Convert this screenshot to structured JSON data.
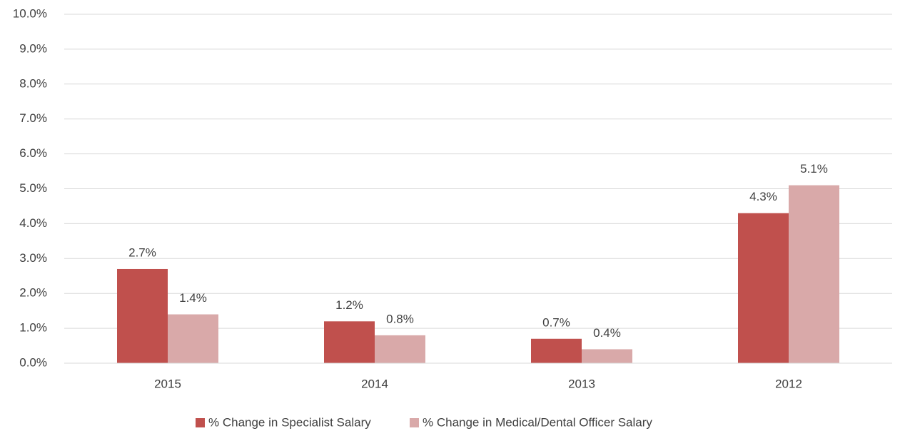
{
  "chart_data": {
    "type": "bar",
    "categories": [
      "2015",
      "2014",
      "2013",
      "2012"
    ],
    "series": [
      {
        "name": "% Change in Specialist Salary",
        "color": "#c0504d",
        "values": [
          2.7,
          1.2,
          0.7,
          4.3
        ],
        "value_labels": [
          "2.7%",
          "1.2%",
          "0.7%",
          "4.3%"
        ]
      },
      {
        "name": "% Change in Medical/Dental Officer Salary",
        "color": "#d9a9a9",
        "values": [
          1.4,
          0.8,
          0.4,
          5.1
        ],
        "value_labels": [
          "1.4%",
          "0.8%",
          "0.4%",
          "5.1%"
        ]
      }
    ],
    "ylim": [
      0,
      10
    ],
    "yticks": [
      {
        "value": 0,
        "label": "0.0%"
      },
      {
        "value": 1,
        "label": "1.0%"
      },
      {
        "value": 2,
        "label": "2.0%"
      },
      {
        "value": 3,
        "label": "3.0%"
      },
      {
        "value": 4,
        "label": "4.0%"
      },
      {
        "value": 5,
        "label": "5.0%"
      },
      {
        "value": 6,
        "label": "6.0%"
      },
      {
        "value": 7,
        "label": "7.0%"
      },
      {
        "value": 8,
        "label": "8.0%"
      },
      {
        "value": 9,
        "label": "9.0%"
      },
      {
        "value": 10,
        "label": "10.0%"
      }
    ],
    "grid": true,
    "legend": "bottom"
  }
}
